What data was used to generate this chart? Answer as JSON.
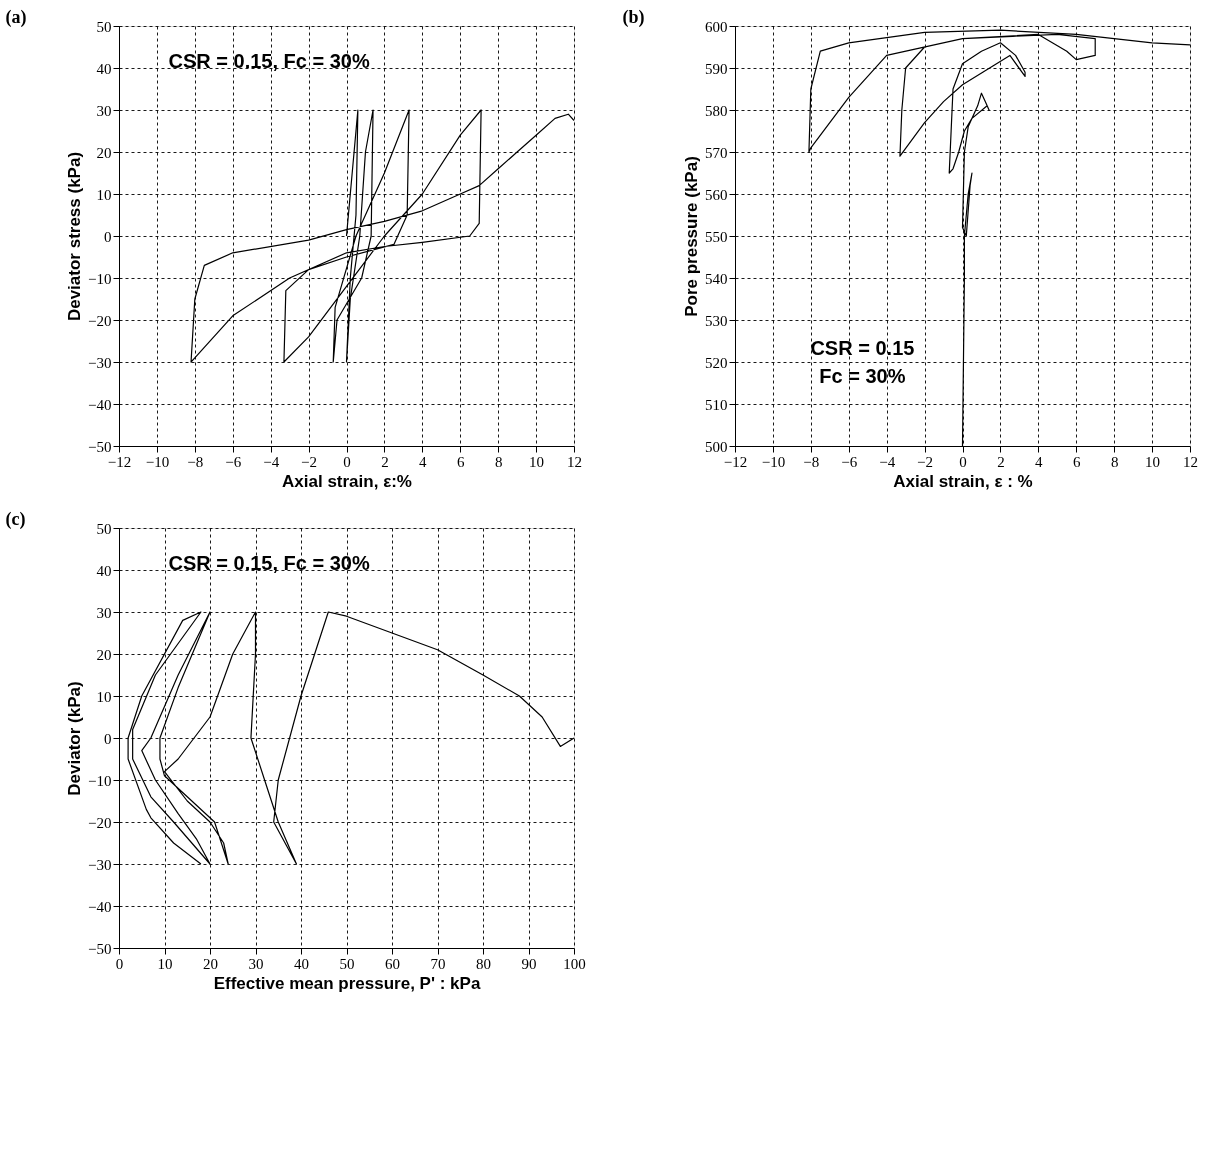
{
  "chart_data": [
    {
      "type": "line",
      "title": "(a)",
      "xlabel": "Axial strain, ε:%",
      "ylabel": "Deviator stress (kPa)",
      "annotations": [
        "CSR = 0.15, Fc = 30%"
      ],
      "xlim": [
        -12,
        12
      ],
      "xticks": [
        -12,
        -10,
        -8,
        -6,
        -4,
        -2,
        0,
        2,
        4,
        6,
        8,
        10,
        12
      ],
      "ylim": [
        -50,
        50
      ],
      "yticks": [
        -50,
        -40,
        -30,
        -20,
        -10,
        0,
        10,
        20,
        30,
        40,
        50
      ],
      "grid": true,
      "marker": "none",
      "line_style": "solid",
      "x": [
        0,
        0.2,
        0.5,
        0.6,
        0.5,
        0.2,
        0,
        0.2,
        0.7,
        1.0,
        1.4,
        1.3,
        0.8,
        -0.5,
        -0.7,
        -0.6,
        0.5,
        2,
        3.3,
        3.2,
        2.5,
        0,
        -2,
        -3.2,
        -3.3,
        -2,
        0,
        2,
        4,
        6,
        7.1,
        7,
        6.5,
        4,
        2,
        0,
        -3,
        -6,
        -8,
        -8.2,
        -8,
        -7.5,
        -6,
        -2,
        0,
        2,
        4,
        6,
        7,
        8,
        9,
        10,
        11,
        11.7,
        12
      ],
      "series": [
        {
          "color": "#000000",
          "values": [
            0,
            10,
            25,
            30,
            5,
            -10,
            -30,
            -15,
            0,
            20,
            30,
            0,
            -10,
            -20,
            -30,
            -17,
            0,
            15,
            30,
            5,
            -2,
            -5,
            -8,
            -13,
            -30,
            -24,
            -12,
            0,
            10,
            24,
            30,
            3,
            0,
            -1.5,
            -2.5,
            -4,
            -10,
            -19,
            -29,
            -30,
            -15,
            -7,
            -4,
            -1,
            1.5,
            3.5,
            6,
            10,
            12,
            16,
            20,
            24,
            28,
            29,
            27.5
          ]
        }
      ]
    },
    {
      "type": "line",
      "title": "(b)",
      "xlabel": "Axial strain, ε : %",
      "ylabel": "Pore pressure (kPa)",
      "annotations": [
        "CSR = 0.15",
        "Fc = 30%"
      ],
      "xlim": [
        -12,
        12
      ],
      "xticks": [
        -12,
        -10,
        -8,
        -6,
        -4,
        -2,
        0,
        2,
        4,
        6,
        8,
        10,
        12
      ],
      "ylim": [
        500,
        600
      ],
      "yticks": [
        500,
        510,
        520,
        530,
        540,
        550,
        560,
        570,
        580,
        590,
        600
      ],
      "grid": true,
      "marker": "none",
      "line_style": "solid",
      "x": [
        0,
        0.1,
        0.1,
        0.3,
        0.5,
        0.4,
        0.2,
        0,
        0.1,
        0.3,
        0.8,
        1.0,
        1.2,
        1.4,
        1.3,
        0.5,
        0.1,
        -0.2,
        -0.5,
        -0.7,
        -0.6,
        -0.5,
        0,
        1,
        2,
        2.8,
        3.3,
        3.3,
        2.5,
        0,
        -1,
        -2,
        -3.3,
        -3.2,
        -3,
        -2,
        0,
        4,
        5.5,
        6,
        7,
        7,
        5,
        0,
        -4,
        -6,
        -8,
        -8.1,
        -8,
        -7.5,
        -6,
        -2,
        2,
        6,
        8,
        10,
        12
      ],
      "series": [
        {
          "color": "#000000",
          "values": [
            500,
            540,
            550,
            560,
            565,
            562,
            550,
            552,
            570,
            576,
            581,
            584,
            582,
            580,
            581,
            578,
            575,
            570,
            566,
            565,
            575,
            585,
            591,
            594,
            596,
            593,
            589,
            588,
            593,
            586,
            582,
            577,
            569,
            580,
            590,
            595,
            597,
            598,
            594,
            592,
            593,
            597,
            598,
            597,
            593,
            583,
            571,
            570,
            585,
            594,
            596,
            598.5,
            599,
            598,
            597,
            596,
            595.5
          ]
        }
      ]
    },
    {
      "type": "line",
      "title": "(c)",
      "xlabel": "Effective mean pressure, P' : kPa",
      "ylabel": "Deviator (kPa)",
      "annotations": [
        "CSR = 0.15, Fc = 30%"
      ],
      "xlim": [
        0,
        100
      ],
      "xticks": [
        0,
        10,
        20,
        30,
        40,
        50,
        60,
        70,
        80,
        90,
        100
      ],
      "ylim": [
        -50,
        50
      ],
      "yticks": [
        -50,
        -40,
        -30,
        -20,
        -10,
        0,
        10,
        20,
        30,
        40,
        50
      ],
      "grid": true,
      "marker": "none",
      "line_style": "solid",
      "x": [
        100,
        97,
        93,
        88,
        80,
        70,
        60,
        50,
        46,
        40,
        35,
        34,
        39,
        35,
        32,
        29,
        30,
        30,
        25,
        20,
        13,
        10,
        15,
        20,
        23,
        24,
        21,
        15,
        10,
        9,
        9,
        13,
        20,
        13,
        7,
        5,
        8,
        13,
        17,
        20,
        12,
        7,
        3,
        3,
        8,
        18,
        14,
        5,
        2,
        2,
        6,
        7,
        12,
        18
      ],
      "series": [
        {
          "color": "#000000",
          "values": [
            0,
            -2,
            5,
            10,
            15,
            21,
            25,
            29,
            30,
            10,
            -10,
            -20,
            -30,
            -20,
            -10,
            0,
            20,
            30,
            20,
            5,
            -5,
            -8,
            -15,
            -20,
            -25,
            -30,
            -20,
            -14,
            -9,
            -5,
            0,
            12,
            30,
            15,
            0,
            -3,
            -10,
            -18,
            -24,
            -30,
            -20,
            -14,
            -5,
            2,
            15,
            30,
            28,
            10,
            0,
            -5,
            -17,
            -19,
            -25,
            -30
          ]
        }
      ]
    }
  ]
}
